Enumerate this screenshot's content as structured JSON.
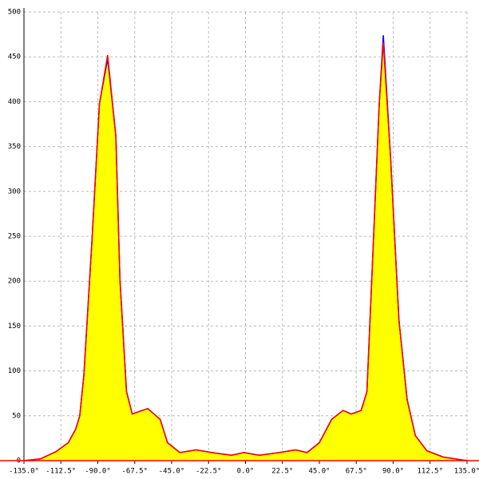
{
  "chart_data": {
    "type": "area",
    "x": [
      -135,
      -125,
      -115.5,
      -108,
      -103.5,
      -101,
      -98.5,
      -93.5,
      -89,
      -84,
      -79,
      -76.5,
      -72.5,
      -69,
      -64.5,
      -59.5,
      -52,
      -47.5,
      -40,
      -30,
      -20.5,
      -8.5,
      -1,
      8.5,
      20.5,
      30.5,
      37.5,
      45,
      52.5,
      59.5,
      64.5,
      70.5,
      74,
      78,
      81.5,
      84,
      88.5,
      93.5,
      98.5,
      103.5,
      110.5,
      120.5,
      135
    ],
    "series": [
      {
        "color": "#0000ff",
        "values": [
          0,
          2,
          10,
          20,
          35,
          50,
          95,
          247,
          398,
          448,
          362,
          202,
          77,
          52,
          55,
          58,
          46,
          20,
          9,
          12,
          9,
          6,
          9,
          6,
          9,
          12,
          9,
          20,
          46,
          56,
          52,
          56,
          77,
          247,
          398,
          474,
          335,
          157,
          68,
          28,
          11,
          4,
          0
        ]
      },
      {
        "color": "#ff0000",
        "values": [
          0,
          2,
          10,
          20,
          35,
          50,
          95,
          247,
          398,
          452,
          362,
          202,
          77,
          52,
          55,
          58,
          46,
          20,
          9,
          12,
          9,
          6,
          9,
          6,
          9,
          12,
          9,
          20,
          46,
          56,
          52,
          56,
          77,
          247,
          398,
          466,
          335,
          157,
          68,
          28,
          11,
          4,
          0
        ]
      }
    ],
    "fill_color": "#ffff00",
    "xlim": [
      -135,
      135
    ],
    "xticks": [
      {
        "value": -135,
        "label": "-135.0°"
      },
      {
        "value": -112.5,
        "label": "-112.5°"
      },
      {
        "value": -90,
        "label": "-90.0°"
      },
      {
        "value": -67.5,
        "label": "-67.5°"
      },
      {
        "value": -45,
        "label": "-45.0°"
      },
      {
        "value": -22.5,
        "label": "-22.5°"
      },
      {
        "value": 0,
        "label": "0.0°"
      },
      {
        "value": 22.5,
        "label": "22.5°"
      },
      {
        "value": 45,
        "label": "45.0°"
      },
      {
        "value": 67.5,
        "label": "67.5°"
      },
      {
        "value": 90,
        "label": "90.0°"
      },
      {
        "value": 112.5,
        "label": "112.5°"
      },
      {
        "value": 135,
        "label": "135.0°"
      }
    ],
    "ylim": [
      0,
      500
    ],
    "yticks": [
      0,
      50,
      100,
      150,
      200,
      250,
      300,
      350,
      400,
      450,
      500
    ],
    "grid": true
  }
}
